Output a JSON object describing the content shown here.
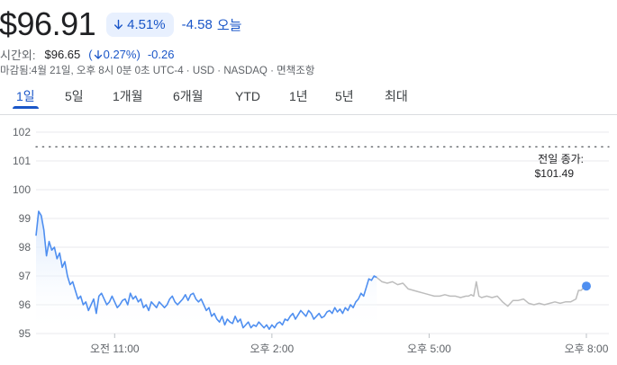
{
  "quote": {
    "price": "$96.91",
    "change_pct": "4.51%",
    "change_abs": "-4.58",
    "change_label": "오늘",
    "afterhours_label": "시간외:",
    "afterhours_price": "$96.65",
    "afterhours_pct": "0.27%)",
    "afterhours_pct_prefix": "(",
    "afterhours_abs": "-0.26",
    "meta": "마감됨:4월 21일, 오후 8시 0분 0초 UTC-4 · USD · NASDAQ · 면책조항"
  },
  "colors": {
    "accent": "#1a56c8",
    "line_regular": "#4f8ff0",
    "line_extended": "#bdbdbd",
    "fill_top": "#d6e6fd"
  },
  "tabs": [
    "1일",
    "5일",
    "1개월",
    "6개월",
    "YTD",
    "1년",
    "5년",
    "최대"
  ],
  "active_tab": 0,
  "chart_data": {
    "type": "line",
    "y_ticks": [
      "102",
      "101",
      "100",
      "99",
      "98",
      "97",
      "96",
      "95"
    ],
    "ylim": [
      95,
      102
    ],
    "x_ticks": [
      "오전 11:00",
      "오후 2:00",
      "오후 5:00",
      "오후 8:00"
    ],
    "x_tick_hours": [
      11,
      14,
      17,
      20
    ],
    "xlim": [
      9.5,
      20
    ],
    "previous_close": 101.49,
    "previous_close_label": [
      "전일 종가:",
      "$101.49"
    ],
    "series": [
      {
        "segment": "regular",
        "points": [
          [
            9.5,
            98.4
          ],
          [
            9.55,
            99.25
          ],
          [
            9.6,
            99.1
          ],
          [
            9.65,
            98.6
          ],
          [
            9.7,
            97.7
          ],
          [
            9.75,
            98.2
          ],
          [
            9.8,
            97.9
          ],
          [
            9.85,
            98.0
          ],
          [
            9.9,
            97.6
          ],
          [
            9.95,
            97.8
          ],
          [
            10.0,
            97.3
          ],
          [
            10.05,
            97.5
          ],
          [
            10.1,
            97.0
          ],
          [
            10.15,
            96.7
          ],
          [
            10.2,
            96.8
          ],
          [
            10.25,
            96.5
          ],
          [
            10.3,
            96.2
          ],
          [
            10.35,
            96.3
          ],
          [
            10.4,
            96.0
          ],
          [
            10.45,
            96.1
          ],
          [
            10.5,
            95.8
          ],
          [
            10.55,
            96.0
          ],
          [
            10.6,
            96.2
          ],
          [
            10.65,
            95.7
          ],
          [
            10.7,
            96.3
          ],
          [
            10.75,
            96.4
          ],
          [
            10.8,
            96.2
          ],
          [
            10.85,
            96.0
          ],
          [
            10.9,
            96.1
          ],
          [
            10.95,
            96.3
          ],
          [
            11.0,
            96.1
          ],
          [
            11.05,
            95.9
          ],
          [
            11.1,
            96.0
          ],
          [
            11.15,
            96.15
          ],
          [
            11.2,
            96.2
          ],
          [
            11.25,
            96.0
          ],
          [
            11.3,
            96.4
          ],
          [
            11.35,
            96.2
          ],
          [
            11.4,
            96.3
          ],
          [
            11.45,
            96.1
          ],
          [
            11.5,
            96.2
          ],
          [
            11.55,
            95.9
          ],
          [
            11.6,
            96.0
          ],
          [
            11.65,
            95.8
          ],
          [
            11.7,
            96.1
          ],
          [
            11.75,
            96.0
          ],
          [
            11.8,
            95.9
          ],
          [
            11.85,
            96.1
          ],
          [
            11.9,
            96.0
          ],
          [
            11.95,
            95.9
          ],
          [
            12.0,
            96.0
          ],
          [
            12.05,
            96.2
          ],
          [
            12.1,
            96.3
          ],
          [
            12.15,
            96.1
          ],
          [
            12.2,
            96.0
          ],
          [
            12.25,
            96.1
          ],
          [
            12.3,
            96.2
          ],
          [
            12.35,
            96.35
          ],
          [
            12.4,
            96.15
          ],
          [
            12.45,
            96.35
          ],
          [
            12.5,
            96.4
          ],
          [
            12.55,
            96.2
          ],
          [
            12.6,
            96.1
          ],
          [
            12.65,
            96.2
          ],
          [
            12.7,
            96.0
          ],
          [
            12.75,
            95.8
          ],
          [
            12.8,
            95.9
          ],
          [
            12.85,
            95.6
          ],
          [
            12.9,
            95.7
          ],
          [
            12.95,
            95.5
          ],
          [
            13.0,
            95.4
          ],
          [
            13.05,
            95.6
          ],
          [
            13.1,
            95.3
          ],
          [
            13.15,
            95.5
          ],
          [
            13.2,
            95.4
          ],
          [
            13.25,
            95.35
          ],
          [
            13.3,
            95.6
          ],
          [
            13.35,
            95.4
          ],
          [
            13.4,
            95.5
          ],
          [
            13.45,
            95.2
          ],
          [
            13.5,
            95.3
          ],
          [
            13.55,
            95.4
          ],
          [
            13.6,
            95.2
          ],
          [
            13.65,
            95.3
          ],
          [
            13.7,
            95.25
          ],
          [
            13.75,
            95.4
          ],
          [
            13.8,
            95.3
          ],
          [
            13.85,
            95.2
          ],
          [
            13.9,
            95.3
          ],
          [
            13.95,
            95.15
          ],
          [
            14.0,
            95.3
          ],
          [
            14.05,
            95.2
          ],
          [
            14.1,
            95.35
          ],
          [
            14.15,
            95.4
          ],
          [
            14.2,
            95.3
          ],
          [
            14.25,
            95.5
          ],
          [
            14.3,
            95.45
          ],
          [
            14.35,
            95.6
          ],
          [
            14.4,
            95.7
          ],
          [
            14.45,
            95.5
          ],
          [
            14.5,
            95.65
          ],
          [
            14.55,
            95.8
          ],
          [
            14.6,
            95.7
          ],
          [
            14.65,
            95.6
          ],
          [
            14.7,
            95.8
          ],
          [
            14.75,
            95.7
          ],
          [
            14.8,
            95.5
          ],
          [
            14.85,
            95.6
          ],
          [
            14.9,
            95.7
          ],
          [
            14.95,
            95.55
          ],
          [
            15.0,
            95.6
          ],
          [
            15.05,
            95.75
          ],
          [
            15.1,
            95.8
          ],
          [
            15.15,
            95.7
          ],
          [
            15.2,
            95.9
          ],
          [
            15.25,
            95.75
          ],
          [
            15.3,
            95.85
          ],
          [
            15.35,
            95.7
          ],
          [
            15.4,
            95.9
          ],
          [
            15.45,
            95.8
          ],
          [
            15.5,
            96.0
          ],
          [
            15.55,
            95.9
          ],
          [
            15.6,
            96.1
          ],
          [
            15.65,
            96.2
          ],
          [
            15.7,
            96.4
          ],
          [
            15.75,
            96.3
          ],
          [
            15.8,
            96.6
          ],
          [
            15.85,
            96.9
          ],
          [
            15.9,
            96.85
          ],
          [
            15.95,
            97.0
          ],
          [
            16.0,
            96.95
          ]
        ]
      },
      {
        "segment": "extended",
        "points": [
          [
            16.0,
            96.95
          ],
          [
            16.1,
            96.8
          ],
          [
            16.2,
            96.75
          ],
          [
            16.3,
            96.8
          ],
          [
            16.4,
            96.7
          ],
          [
            16.5,
            96.75
          ],
          [
            16.6,
            96.55
          ],
          [
            16.7,
            96.5
          ],
          [
            16.8,
            96.45
          ],
          [
            16.9,
            96.4
          ],
          [
            17.0,
            96.35
          ],
          [
            17.1,
            96.3
          ],
          [
            17.2,
            96.3
          ],
          [
            17.3,
            96.35
          ],
          [
            17.4,
            96.3
          ],
          [
            17.5,
            96.3
          ],
          [
            17.6,
            96.25
          ],
          [
            17.7,
            96.3
          ],
          [
            17.75,
            96.3
          ],
          [
            17.8,
            96.35
          ],
          [
            17.85,
            96.3
          ],
          [
            17.9,
            96.8
          ],
          [
            17.95,
            96.3
          ],
          [
            18.0,
            96.25
          ],
          [
            18.1,
            96.3
          ],
          [
            18.2,
            96.25
          ],
          [
            18.3,
            96.3
          ],
          [
            18.4,
            96.1
          ],
          [
            18.5,
            95.95
          ],
          [
            18.6,
            96.15
          ],
          [
            18.7,
            96.15
          ],
          [
            18.8,
            96.2
          ],
          [
            18.9,
            96.05
          ],
          [
            19.0,
            96.0
          ],
          [
            19.1,
            96.05
          ],
          [
            19.2,
            96.0
          ],
          [
            19.3,
            96.05
          ],
          [
            19.4,
            96.1
          ],
          [
            19.5,
            96.05
          ],
          [
            19.6,
            96.1
          ],
          [
            19.7,
            96.1
          ],
          [
            19.8,
            96.2
          ],
          [
            19.85,
            96.5
          ],
          [
            19.9,
            96.5
          ],
          [
            19.95,
            96.6
          ],
          [
            20.0,
            96.65
          ]
        ]
      }
    ]
  }
}
